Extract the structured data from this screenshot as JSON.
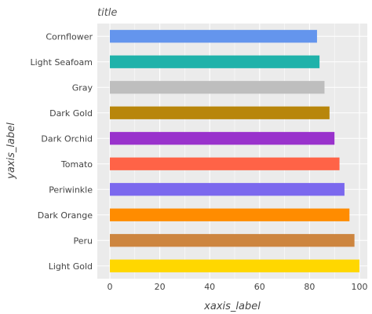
{
  "chart_data": {
    "type": "bar",
    "orientation": "horizontal",
    "title": "title",
    "xlabel": "xaxis_label",
    "ylabel": "yaxis_label",
    "xlim": [
      0,
      100
    ],
    "xticks": [
      "0",
      "20",
      "40",
      "60",
      "80",
      "100"
    ],
    "grid": true,
    "categories": [
      "Cornflower",
      "Light Seafoam",
      "Gray",
      "Dark Gold",
      "Dark Orchid",
      "Tomato",
      "Periwinkle",
      "Dark Orange",
      "Peru",
      "Light Gold"
    ],
    "values": [
      83,
      84,
      86,
      88,
      90,
      92,
      94,
      96,
      98,
      100
    ],
    "colors": [
      "#6495ed",
      "#20b2aa",
      "#bebebe",
      "#b8860b",
      "#9932cc",
      "#ff6347",
      "#7b68ee",
      "#ff8c00",
      "#cd853f",
      "#ffd700"
    ]
  }
}
